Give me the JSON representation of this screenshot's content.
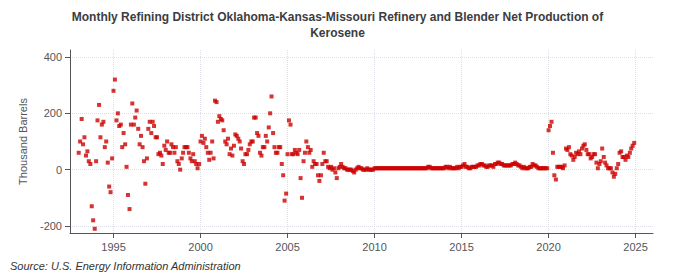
{
  "chart_data": {
    "type": "scatter",
    "title": "Monthly Refining District Oklahoma-Kansas-Missouri Refinery and Blender Net Production of\nKerosene",
    "ylabel": "Thousand Barrels",
    "annotations": [
      "Source: U.S. Energy Information Administration"
    ],
    "color": "#cc0000",
    "marker": "square",
    "xlim": [
      1992.5,
      2026.0
    ],
    "ylim": [
      -225,
      425
    ],
    "xticks": [
      1995,
      2000,
      2005,
      2010,
      2015,
      2020,
      2025
    ],
    "yticks": [
      -200,
      0,
      200,
      400
    ],
    "grid": true,
    "x": [
      1993.0,
      1993.08,
      1993.17,
      1993.25,
      1993.33,
      1993.42,
      1993.5,
      1993.58,
      1993.67,
      1993.75,
      1993.83,
      1993.92,
      1994.0,
      1994.08,
      1994.17,
      1994.25,
      1994.33,
      1994.42,
      1994.5,
      1994.58,
      1994.67,
      1994.75,
      1994.83,
      1994.92,
      1995.0,
      1995.08,
      1995.17,
      1995.25,
      1995.33,
      1995.42,
      1995.5,
      1995.58,
      1995.67,
      1995.75,
      1995.83,
      1995.92,
      1996.0,
      1996.08,
      1996.17,
      1996.25,
      1996.33,
      1996.42,
      1996.5,
      1996.58,
      1996.67,
      1996.75,
      1996.83,
      1996.92,
      1997.0,
      1997.08,
      1997.17,
      1997.25,
      1997.33,
      1997.42,
      1997.5,
      1997.58,
      1997.67,
      1997.75,
      1997.83,
      1997.92,
      1998.0,
      1998.08,
      1998.17,
      1998.25,
      1998.33,
      1998.42,
      1998.5,
      1998.58,
      1998.67,
      1998.75,
      1998.83,
      1998.92,
      1999.0,
      1999.08,
      1999.17,
      1999.25,
      1999.33,
      1999.42,
      1999.5,
      1999.58,
      1999.67,
      1999.75,
      1999.83,
      1999.92,
      2000.0,
      2000.08,
      2000.17,
      2000.25,
      2000.33,
      2000.42,
      2000.5,
      2000.58,
      2000.67,
      2000.75,
      2000.83,
      2000.92,
      2001.0,
      2001.08,
      2001.17,
      2001.25,
      2001.33,
      2001.42,
      2001.5,
      2001.58,
      2001.67,
      2001.75,
      2001.83,
      2001.92,
      2002.0,
      2002.08,
      2002.17,
      2002.25,
      2002.33,
      2002.42,
      2002.5,
      2002.58,
      2002.67,
      2002.75,
      2002.83,
      2002.92,
      2003.0,
      2003.08,
      2003.17,
      2003.25,
      2003.33,
      2003.42,
      2003.5,
      2003.58,
      2003.67,
      2003.75,
      2003.83,
      2003.92,
      2004.0,
      2004.08,
      2004.17,
      2004.25,
      2004.33,
      2004.42,
      2004.5,
      2004.58,
      2004.67,
      2004.75,
      2004.83,
      2004.92,
      2005.0,
      2005.08,
      2005.17,
      2005.25,
      2005.33,
      2005.42,
      2005.5,
      2005.58,
      2005.67,
      2005.75,
      2005.83,
      2005.92,
      2006.0,
      2006.08,
      2006.17,
      2006.25,
      2006.33,
      2006.42,
      2006.5,
      2006.58,
      2006.67,
      2006.75,
      2006.83,
      2006.92,
      2007.0,
      2007.08,
      2007.17,
      2007.25,
      2007.33,
      2007.42,
      2007.5,
      2007.58,
      2007.67,
      2007.75,
      2007.83,
      2007.92,
      2008.0,
      2008.08,
      2008.17,
      2008.25,
      2008.33,
      2008.42,
      2008.5,
      2008.58,
      2008.67,
      2008.75,
      2008.83,
      2008.92,
      2009.0,
      2009.08,
      2009.17,
      2009.25,
      2009.33,
      2009.42,
      2009.5,
      2009.58,
      2009.67,
      2009.75,
      2009.83,
      2009.92,
      2010.0,
      2010.08,
      2010.17,
      2010.25,
      2010.33,
      2010.42,
      2010.5,
      2010.58,
      2010.67,
      2010.75,
      2010.83,
      2010.92,
      2011.0,
      2011.08,
      2011.17,
      2011.25,
      2011.33,
      2011.42,
      2011.5,
      2011.58,
      2011.67,
      2011.75,
      2011.83,
      2011.92,
      2012.0,
      2012.08,
      2012.17,
      2012.25,
      2012.33,
      2012.42,
      2012.5,
      2012.58,
      2012.67,
      2012.75,
      2012.83,
      2012.92,
      2013.0,
      2013.08,
      2013.17,
      2013.25,
      2013.33,
      2013.42,
      2013.5,
      2013.58,
      2013.67,
      2013.75,
      2013.83,
      2013.92,
      2014.0,
      2014.08,
      2014.17,
      2014.25,
      2014.33,
      2014.42,
      2014.5,
      2014.58,
      2014.67,
      2014.75,
      2014.83,
      2014.92,
      2015.0,
      2015.08,
      2015.17,
      2015.25,
      2015.33,
      2015.42,
      2015.5,
      2015.58,
      2015.67,
      2015.75,
      2015.83,
      2015.92,
      2016.0,
      2016.08,
      2016.17,
      2016.25,
      2016.33,
      2016.42,
      2016.5,
      2016.58,
      2016.67,
      2016.75,
      2016.83,
      2016.92,
      2017.0,
      2017.08,
      2017.17,
      2017.25,
      2017.33,
      2017.42,
      2017.5,
      2017.58,
      2017.67,
      2017.75,
      2017.83,
      2017.92,
      2018.0,
      2018.08,
      2018.17,
      2018.25,
      2018.33,
      2018.42,
      2018.5,
      2018.58,
      2018.67,
      2018.75,
      2018.83,
      2018.92,
      2019.0,
      2019.08,
      2019.17,
      2019.25,
      2019.33,
      2019.42,
      2019.5,
      2019.58,
      2019.67,
      2019.75,
      2019.83,
      2019.92,
      2020.0,
      2020.08,
      2020.17,
      2020.25,
      2020.33,
      2020.42,
      2020.5,
      2020.58,
      2020.67,
      2020.75,
      2020.83,
      2020.92,
      2021.0,
      2021.08,
      2021.17,
      2021.25,
      2021.33,
      2021.42,
      2021.5,
      2021.58,
      2021.67,
      2021.75,
      2021.83,
      2021.92,
      2022.0,
      2022.08,
      2022.17,
      2022.25,
      2022.33,
      2022.42,
      2022.5,
      2022.58,
      2022.67,
      2022.75,
      2022.83,
      2022.92,
      2023.0,
      2023.08,
      2023.17,
      2023.25,
      2023.33,
      2023.42,
      2023.5,
      2023.58,
      2023.67,
      2023.75,
      2023.83,
      2023.92,
      2024.0,
      2024.08,
      2024.17,
      2024.25,
      2024.33,
      2024.42,
      2024.5,
      2024.58,
      2024.67,
      2024.75,
      2024.83,
      2024.92
    ],
    "values": [
      60,
      100,
      180,
      90,
      115,
      50,
      65,
      30,
      20,
      -130,
      -180,
      -210,
      30,
      175,
      230,
      115,
      160,
      170,
      80,
      100,
      25,
      -60,
      -80,
      40,
      280,
      320,
      175,
      200,
      155,
      160,
      80,
      130,
      90,
      10,
      -90,
      -140,
      160,
      235,
      160,
      185,
      210,
      145,
      90,
      120,
      80,
      30,
      -50,
      40,
      145,
      170,
      130,
      170,
      155,
      115,
      115,
      55,
      60,
      50,
      20,
      85,
      70,
      100,
      60,
      60,
      90,
      80,
      60,
      80,
      30,
      20,
      0,
      40,
      60,
      80,
      80,
      80,
      60,
      40,
      30,
      55,
      30,
      20,
      5,
      20,
      100,
      120,
      95,
      110,
      80,
      60,
      35,
      60,
      100,
      40,
      245,
      240,
      170,
      190,
      180,
      175,
      140,
      100,
      90,
      110,
      55,
      75,
      50,
      85,
      125,
      120,
      110,
      100,
      75,
      30,
      20,
      55,
      55,
      70,
      90,
      100,
      100,
      185,
      185,
      130,
      120,
      60,
      50,
      80,
      80,
      120,
      100,
      150,
      200,
      260,
      130,
      80,
      60,
      60,
      80,
      80,
      20,
      -20,
      -110,
      -85,
      55,
      175,
      160,
      55,
      55,
      70,
      60,
      55,
      70,
      -30,
      -100,
      30,
      60,
      100,
      80,
      60,
      70,
      10,
      30,
      20,
      20,
      -20,
      -40,
      -20,
      20,
      60,
      30,
      30,
      10,
      5,
      10,
      0,
      5,
      -10,
      -30,
      5,
      10,
      20,
      10,
      5,
      5,
      0,
      0,
      0,
      0,
      -5,
      -10,
      0,
      5,
      10,
      5,
      5,
      0,
      0,
      0,
      5,
      0,
      0,
      0,
      0,
      5,
      5,
      5,
      5,
      5,
      5,
      5,
      5,
      5,
      5,
      5,
      5,
      5,
      5,
      5,
      5,
      5,
      5,
      5,
      5,
      5,
      5,
      5,
      5,
      5,
      5,
      5,
      5,
      5,
      5,
      5,
      5,
      5,
      5,
      5,
      5,
      5,
      10,
      10,
      5,
      5,
      5,
      5,
      5,
      5,
      5,
      5,
      5,
      5,
      10,
      10,
      5,
      10,
      5,
      5,
      5,
      5,
      10,
      5,
      10,
      10,
      15,
      20,
      10,
      10,
      5,
      5,
      10,
      10,
      10,
      10,
      15,
      15,
      20,
      20,
      15,
      15,
      10,
      10,
      15,
      15,
      15,
      10,
      20,
      20,
      25,
      25,
      20,
      20,
      15,
      15,
      15,
      15,
      15,
      15,
      20,
      20,
      25,
      20,
      15,
      15,
      10,
      5,
      10,
      5,
      5,
      5,
      10,
      10,
      20,
      15,
      15,
      10,
      5,
      5,
      5,
      5,
      5,
      5,
      5,
      140,
      155,
      170,
      60,
      -20,
      -35,
      10,
      10,
      10,
      10,
      5,
      15,
      75,
      70,
      80,
      55,
      50,
      35,
      45,
      60,
      55,
      65,
      55,
      75,
      85,
      90,
      70,
      55,
      55,
      40,
      45,
      55,
      55,
      25,
      5,
      20,
      30,
      75,
      45,
      25,
      15,
      5,
      5,
      5,
      -10,
      -25,
      -15,
      5,
      20,
      60,
      65,
      45,
      45,
      35,
      50,
      45,
      60,
      75,
      85,
      95
    ]
  }
}
